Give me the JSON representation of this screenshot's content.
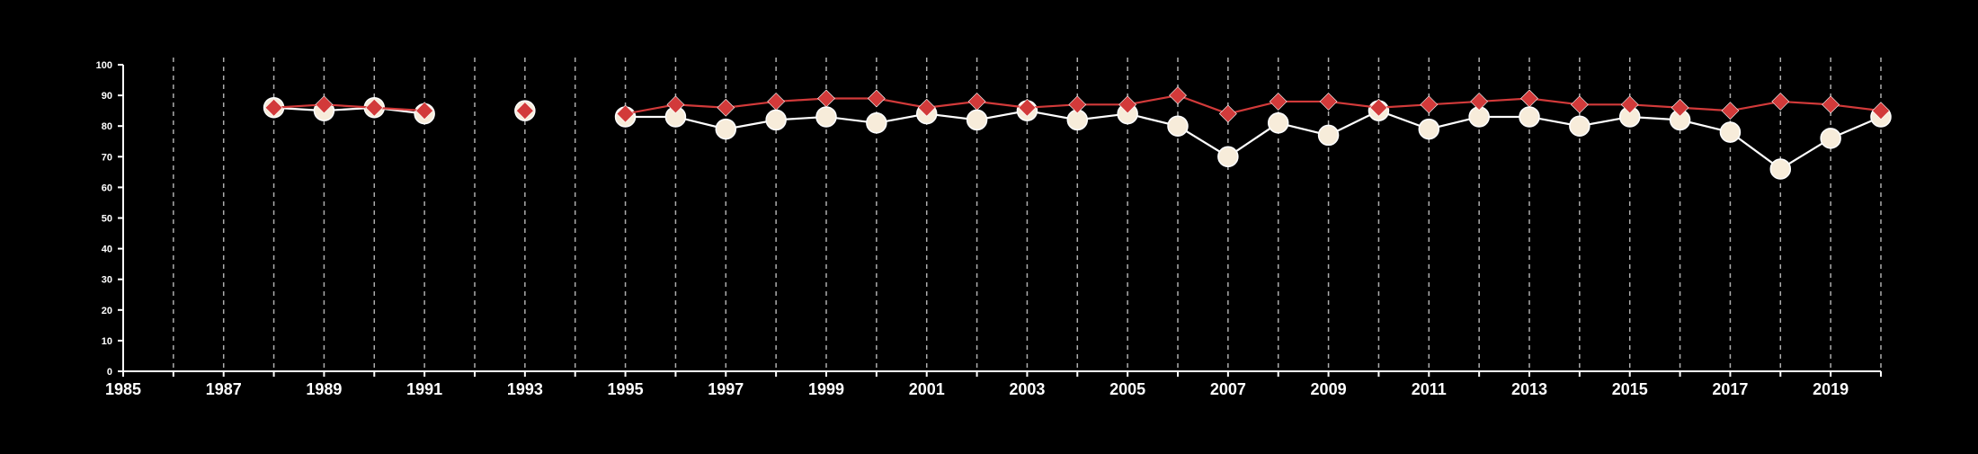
{
  "theme": {
    "background": "#000000",
    "axis_color": "#ffffff",
    "grid_color": "#cccccc",
    "series_a_line": "#ffffff",
    "series_a_marker_fill": "#f7ecda",
    "series_b_color": "#d23a3a"
  },
  "chart_data": {
    "type": "line",
    "title": "",
    "xlabel": "",
    "ylabel": "",
    "xlim": [
      1985,
      2020
    ],
    "ylim": [
      0,
      100
    ],
    "y_ticks": [
      0,
      10,
      20,
      30,
      40,
      50,
      60,
      70,
      80,
      90,
      100
    ],
    "x_ticks": [
      1985,
      1987,
      1989,
      1991,
      1993,
      1995,
      1997,
      1999,
      2001,
      2003,
      2005,
      2007,
      2009,
      2011,
      2013,
      2015,
      2017,
      2019
    ],
    "grid": "vertical dashed lines at every year",
    "legend": "none",
    "series": [
      {
        "marker": "circle",
        "points": [
          {
            "x": 1988,
            "y": 86
          },
          {
            "x": 1989,
            "y": 85
          },
          {
            "x": 1990,
            "y": 86
          },
          {
            "x": 1991,
            "y": 84
          },
          {
            "x": 1993,
            "y": 85
          },
          {
            "x": 1995,
            "y": 83
          },
          {
            "x": 1996,
            "y": 83
          },
          {
            "x": 1997,
            "y": 79
          },
          {
            "x": 1998,
            "y": 82
          },
          {
            "x": 1999,
            "y": 83
          },
          {
            "x": 2000,
            "y": 81
          },
          {
            "x": 2001,
            "y": 84
          },
          {
            "x": 2002,
            "y": 82
          },
          {
            "x": 2003,
            "y": 85
          },
          {
            "x": 2004,
            "y": 82
          },
          {
            "x": 2005,
            "y": 84
          },
          {
            "x": 2006,
            "y": 80
          },
          {
            "x": 2007,
            "y": 70
          },
          {
            "x": 2008,
            "y": 81
          },
          {
            "x": 2009,
            "y": 77
          },
          {
            "x": 2010,
            "y": 85
          },
          {
            "x": 2011,
            "y": 79
          },
          {
            "x": 2012,
            "y": 83
          },
          {
            "x": 2013,
            "y": 83
          },
          {
            "x": 2014,
            "y": 80
          },
          {
            "x": 2015,
            "y": 83
          },
          {
            "x": 2016,
            "y": 82
          },
          {
            "x": 2017,
            "y": 78
          },
          {
            "x": 2018,
            "y": 66
          },
          {
            "x": 2019,
            "y": 76
          },
          {
            "x": 2020,
            "y": 83
          }
        ]
      },
      {
        "marker": "diamond",
        "points": [
          {
            "x": 1988,
            "y": 86
          },
          {
            "x": 1989,
            "y": 87
          },
          {
            "x": 1990,
            "y": 86
          },
          {
            "x": 1991,
            "y": 85
          },
          {
            "x": 1993,
            "y": 85
          },
          {
            "x": 1995,
            "y": 84
          },
          {
            "x": 1996,
            "y": 87
          },
          {
            "x": 1997,
            "y": 86
          },
          {
            "x": 1998,
            "y": 88
          },
          {
            "x": 1999,
            "y": 89
          },
          {
            "x": 2000,
            "y": 89
          },
          {
            "x": 2001,
            "y": 86
          },
          {
            "x": 2002,
            "y": 88
          },
          {
            "x": 2003,
            "y": 86
          },
          {
            "x": 2004,
            "y": 87
          },
          {
            "x": 2005,
            "y": 87
          },
          {
            "x": 2006,
            "y": 90
          },
          {
            "x": 2007,
            "y": 84
          },
          {
            "x": 2008,
            "y": 88
          },
          {
            "x": 2009,
            "y": 88
          },
          {
            "x": 2010,
            "y": 86
          },
          {
            "x": 2011,
            "y": 87
          },
          {
            "x": 2012,
            "y": 88
          },
          {
            "x": 2013,
            "y": 89
          },
          {
            "x": 2014,
            "y": 87
          },
          {
            "x": 2015,
            "y": 87
          },
          {
            "x": 2016,
            "y": 86
          },
          {
            "x": 2017,
            "y": 85
          },
          {
            "x": 2018,
            "y": 88
          },
          {
            "x": 2019,
            "y": 87
          },
          {
            "x": 2020,
            "y": 85
          }
        ]
      }
    ]
  }
}
